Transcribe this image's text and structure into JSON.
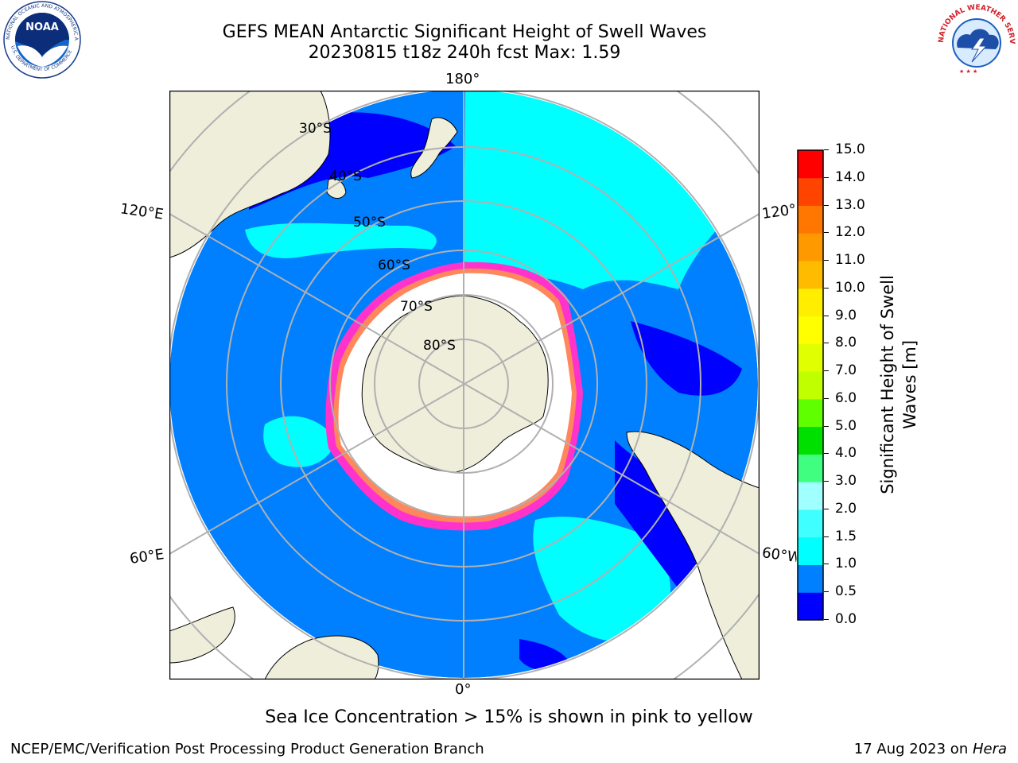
{
  "header": {
    "title": "GEFS MEAN Antarctic Significant Height of Swell Waves",
    "subtitle": "20230815 t18z 240h fcst   Max: 1.59"
  },
  "logos": {
    "left": {
      "text_top": "NATIONAL OCEANIC AND ATMOSPHERIC ADMINISTRATION",
      "text_bottom": "U.S. DEPARTMENT OF COMMERCE",
      "center": "NOAA"
    },
    "right": {
      "text": "NATIONAL WEATHER SERVICE"
    }
  },
  "map": {
    "projection": "south-polar-stereographic",
    "longitude_labels": {
      "top": "180°",
      "bottom": "0°",
      "left_upper": "120°E",
      "left_lower": "60°E",
      "right_upper": "120°W",
      "right_lower": "60°W"
    },
    "latitude_labels": [
      "30°S",
      "40°S",
      "50°S",
      "60°S",
      "70°S",
      "80°S"
    ],
    "colors": {
      "land": "#eeeedb",
      "ocean_05_10": "#0080ff",
      "ocean_10_15": "#00ffff",
      "ocean_00_05": "#0000ff",
      "sea_ice": "#ffffff",
      "ice_edge": "#ff33cc",
      "grid": "#b0b0b0"
    }
  },
  "colorbar": {
    "label": "Significant Height of Swell Waves [m]",
    "label_line1": "Significant Height of Swell",
    "label_line2": "Waves [m]",
    "ticks": [
      "15.0",
      "14.0",
      "13.0",
      "12.0",
      "11.0",
      "10.0",
      "9.0",
      "8.0",
      "7.0",
      "6.0",
      "5.0",
      "4.0",
      "3.0",
      "2.0",
      "1.5",
      "1.0",
      "0.5",
      "0.0"
    ],
    "bins": [
      {
        "from": 0.0,
        "to": 0.5,
        "color": "#0000ff"
      },
      {
        "from": 0.5,
        "to": 1.0,
        "color": "#0080ff"
      },
      {
        "from": 1.0,
        "to": 1.5,
        "color": "#00ffff"
      },
      {
        "from": 1.5,
        "to": 2.0,
        "color": "#40ffff"
      },
      {
        "from": 2.0,
        "to": 3.0,
        "color": "#a0ffff"
      },
      {
        "from": 3.0,
        "to": 4.0,
        "color": "#40ff80"
      },
      {
        "from": 4.0,
        "to": 5.0,
        "color": "#00e000"
      },
      {
        "from": 5.0,
        "to": 6.0,
        "color": "#60ff00"
      },
      {
        "from": 6.0,
        "to": 7.0,
        "color": "#c0ff00"
      },
      {
        "from": 7.0,
        "to": 8.0,
        "color": "#e0ff00"
      },
      {
        "from": 8.0,
        "to": 9.0,
        "color": "#ffff00"
      },
      {
        "from": 9.0,
        "to": 10.0,
        "color": "#ffee00"
      },
      {
        "from": 10.0,
        "to": 11.0,
        "color": "#ffbb00"
      },
      {
        "from": 11.0,
        "to": 12.0,
        "color": "#ff9900"
      },
      {
        "from": 12.0,
        "to": 13.0,
        "color": "#ff7700"
      },
      {
        "from": 13.0,
        "to": 14.0,
        "color": "#ff4400"
      },
      {
        "from": 14.0,
        "to": 15.0,
        "color": "#ff0000"
      }
    ]
  },
  "footnote": "Sea Ice Concentration > 15% is shown in pink to yellow",
  "footer": {
    "left": "NCEP/EMC/Verification Post Processing Product Generation Branch",
    "right_date": "17 Aug 2023 on ",
    "right_host": "Hera"
  }
}
